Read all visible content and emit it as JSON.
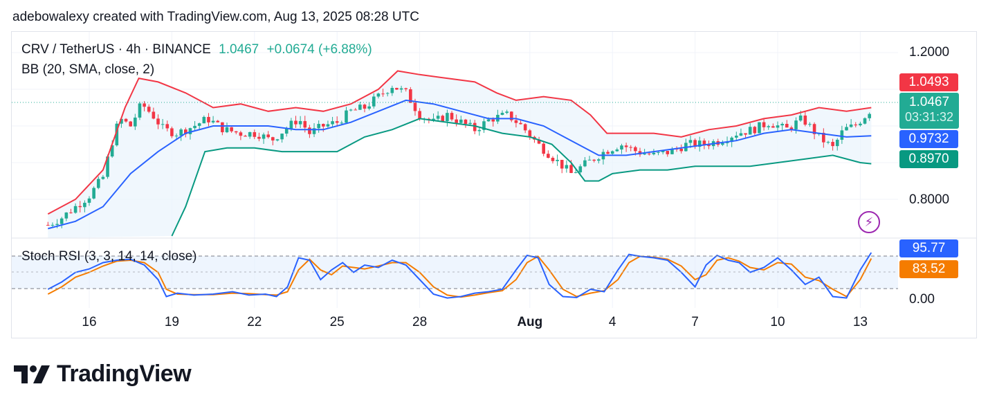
{
  "header": {
    "text": "adebowalexy created with TradingView.com, Aug 13, 2025 08:28 UTC"
  },
  "legend": {
    "symbol": "CRV / TetherUS · 4h · BINANCE",
    "price": "1.0467",
    "change": "+0.0674 (+6.88%)",
    "bb": "BB (20, SMA, close, 2)",
    "stoch": "Stoch RSI (3, 3, 14, 14, close)"
  },
  "price_axis": {
    "labels": [
      "1.2000",
      "0.8000"
    ]
  },
  "stoch_axis": {
    "labels": [
      "0.00"
    ]
  },
  "tags": {
    "bb_upper": "1.0493",
    "last_price": "1.0467",
    "countdown": "03:31:32",
    "bb_basis": "0.9732",
    "bb_lower": "0.8970",
    "stoch_k": "95.77",
    "stoch_d": "83.52"
  },
  "x_axis": {
    "labels": [
      "16",
      "19",
      "22",
      "25",
      "28",
      "Aug",
      "4",
      "7",
      "10",
      "13"
    ]
  },
  "colors": {
    "up": "#22ab94",
    "down": "#f23645",
    "bb_upper": "#f23645",
    "bb_basis": "#2962ff",
    "bb_lower": "#089981",
    "bb_fill": "#eaf3fc",
    "stoch_k": "#2962ff",
    "stoch_d": "#f57c00",
    "stoch_tag_k": "#2962ff",
    "stoch_tag_d": "#f57c00"
  },
  "icons": {
    "flash": "flash-icon",
    "logo": "tradingview-logo"
  },
  "logo": {
    "text": "TradingView"
  },
  "chart_data": {
    "type": "candlestick",
    "interval": "4h",
    "y_range": [
      0.7,
      1.25
    ],
    "x_ticks": [
      {
        "label": "16",
        "day": 16
      },
      {
        "label": "19",
        "day": 19
      },
      {
        "label": "22",
        "day": 22
      },
      {
        "label": "25",
        "day": 25
      },
      {
        "label": "28",
        "day": 28
      },
      {
        "label": "Aug",
        "day": 32
      },
      {
        "label": "4",
        "day": 35
      },
      {
        "label": "7",
        "day": 38
      },
      {
        "label": "10",
        "day": 41
      },
      {
        "label": "13",
        "day": 44
      }
    ],
    "close_path": [
      [
        14.5,
        0.73
      ],
      [
        15.0,
        0.75
      ],
      [
        15.5,
        0.78
      ],
      [
        16.0,
        0.81
      ],
      [
        16.5,
        0.86
      ],
      [
        16.8,
        0.95
      ],
      [
        17.1,
        1.02
      ],
      [
        17.5,
        1.0
      ],
      [
        17.9,
        1.06
      ],
      [
        18.3,
        1.03
      ],
      [
        18.7,
        0.99
      ],
      [
        19.2,
        0.98
      ],
      [
        19.8,
        1.0
      ],
      [
        20.3,
        1.02
      ],
      [
        20.9,
        0.99
      ],
      [
        21.5,
        0.98
      ],
      [
        22.1,
        0.98
      ],
      [
        22.6,
        0.96
      ],
      [
        23.1,
        0.99
      ],
      [
        23.6,
        1.02
      ],
      [
        24.0,
        0.98
      ],
      [
        24.5,
        1.0
      ],
      [
        25.0,
        1.01
      ],
      [
        25.5,
        1.04
      ],
      [
        26.0,
        1.05
      ],
      [
        26.5,
        1.08
      ],
      [
        27.0,
        1.11
      ],
      [
        27.5,
        1.09
      ],
      [
        28.0,
        1.03
      ],
      [
        28.5,
        1.01
      ],
      [
        29.0,
        1.03
      ],
      [
        29.5,
        1.01
      ],
      [
        30.0,
        0.99
      ],
      [
        30.6,
        1.02
      ],
      [
        31.2,
        1.03
      ],
      [
        31.7,
        1.0
      ],
      [
        32.3,
        0.95
      ],
      [
        32.9,
        0.91
      ],
      [
        33.5,
        0.87
      ],
      [
        34.1,
        0.9
      ],
      [
        34.7,
        0.93
      ],
      [
        35.3,
        0.95
      ],
      [
        35.9,
        0.93
      ],
      [
        36.5,
        0.92
      ],
      [
        37.1,
        0.93
      ],
      [
        37.7,
        0.95
      ],
      [
        38.3,
        0.95
      ],
      [
        38.9,
        0.96
      ],
      [
        39.5,
        0.98
      ],
      [
        40.1,
        0.99
      ],
      [
        40.7,
        1.01
      ],
      [
        41.3,
        0.99
      ],
      [
        41.9,
        1.02
      ],
      [
        42.5,
        0.97
      ],
      [
        43.0,
        0.94
      ],
      [
        43.4,
        0.99
      ],
      [
        43.8,
        1.0
      ],
      [
        44.2,
        1.03
      ],
      [
        44.4,
        1.0467
      ]
    ],
    "bb_upper_path": [
      [
        14.5,
        0.76
      ],
      [
        15.5,
        0.8
      ],
      [
        16.5,
        0.88
      ],
      [
        17.3,
        1.05
      ],
      [
        17.8,
        1.13
      ],
      [
        18.5,
        1.12
      ],
      [
        19.5,
        1.09
      ],
      [
        20.5,
        1.05
      ],
      [
        21.5,
        1.06
      ],
      [
        22.5,
        1.04
      ],
      [
        23.5,
        1.05
      ],
      [
        24.5,
        1.04
      ],
      [
        25.5,
        1.06
      ],
      [
        26.5,
        1.1
      ],
      [
        27.2,
        1.15
      ],
      [
        28.0,
        1.14
      ],
      [
        29.0,
        1.13
      ],
      [
        30.0,
        1.12
      ],
      [
        30.8,
        1.09
      ],
      [
        31.5,
        1.07
      ],
      [
        32.5,
        1.08
      ],
      [
        33.5,
        1.07
      ],
      [
        34.2,
        1.03
      ],
      [
        34.8,
        0.98
      ],
      [
        35.5,
        0.98
      ],
      [
        36.5,
        0.98
      ],
      [
        37.5,
        0.97
      ],
      [
        38.5,
        0.99
      ],
      [
        39.5,
        1.0
      ],
      [
        40.5,
        1.02
      ],
      [
        41.5,
        1.03
      ],
      [
        42.5,
        1.05
      ],
      [
        43.5,
        1.04
      ],
      [
        44.4,
        1.05
      ]
    ],
    "bb_basis_path": [
      [
        14.5,
        0.72
      ],
      [
        15.5,
        0.74
      ],
      [
        16.5,
        0.78
      ],
      [
        17.5,
        0.87
      ],
      [
        18.5,
        0.93
      ],
      [
        19.5,
        0.98
      ],
      [
        20.5,
        1.0
      ],
      [
        21.5,
        1.0
      ],
      [
        22.5,
        1.0
      ],
      [
        23.5,
        0.99
      ],
      [
        24.5,
        0.99
      ],
      [
        25.5,
        1.01
      ],
      [
        26.5,
        1.04
      ],
      [
        27.5,
        1.07
      ],
      [
        28.5,
        1.06
      ],
      [
        29.5,
        1.04
      ],
      [
        30.5,
        1.02
      ],
      [
        31.5,
        1.02
      ],
      [
        32.5,
        1.0
      ],
      [
        33.5,
        0.96
      ],
      [
        34.5,
        0.92
      ],
      [
        35.5,
        0.92
      ],
      [
        36.5,
        0.93
      ],
      [
        37.5,
        0.94
      ],
      [
        38.5,
        0.95
      ],
      [
        39.5,
        0.96
      ],
      [
        40.5,
        0.98
      ],
      [
        41.5,
        0.99
      ],
      [
        42.5,
        0.98
      ],
      [
        43.5,
        0.97
      ],
      [
        44.4,
        0.9732
      ]
    ],
    "bb_lower_path": [
      [
        19.0,
        0.7
      ],
      [
        19.5,
        0.78
      ],
      [
        20.2,
        0.93
      ],
      [
        21.0,
        0.94
      ],
      [
        22.0,
        0.94
      ],
      [
        23.0,
        0.93
      ],
      [
        24.0,
        0.93
      ],
      [
        25.0,
        0.93
      ],
      [
        26.0,
        0.97
      ],
      [
        27.0,
        0.99
      ],
      [
        28.0,
        1.02
      ],
      [
        29.0,
        1.01
      ],
      [
        30.0,
        1.0
      ],
      [
        31.0,
        0.98
      ],
      [
        32.0,
        0.97
      ],
      [
        32.8,
        0.95
      ],
      [
        33.5,
        0.9
      ],
      [
        34.0,
        0.85
      ],
      [
        34.5,
        0.85
      ],
      [
        35.0,
        0.87
      ],
      [
        36.0,
        0.88
      ],
      [
        37.0,
        0.88
      ],
      [
        38.0,
        0.89
      ],
      [
        39.0,
        0.89
      ],
      [
        40.0,
        0.89
      ],
      [
        41.0,
        0.9
      ],
      [
        42.0,
        0.91
      ],
      [
        43.0,
        0.92
      ],
      [
        44.0,
        0.9
      ],
      [
        44.4,
        0.897
      ]
    ],
    "stoch_k_path": [
      [
        14.5,
        20
      ],
      [
        15.0,
        35
      ],
      [
        15.5,
        55
      ],
      [
        16.0,
        62
      ],
      [
        16.5,
        75
      ],
      [
        17.0,
        80
      ],
      [
        17.5,
        82
      ],
      [
        18.0,
        70
      ],
      [
        18.5,
        40
      ],
      [
        18.8,
        5
      ],
      [
        19.2,
        12
      ],
      [
        19.8,
        8
      ],
      [
        20.5,
        10
      ],
      [
        21.2,
        15
      ],
      [
        21.8,
        8
      ],
      [
        22.4,
        10
      ],
      [
        22.8,
        5
      ],
      [
        23.2,
        25
      ],
      [
        23.6,
        85
      ],
      [
        24.0,
        80
      ],
      [
        24.4,
        40
      ],
      [
        24.8,
        60
      ],
      [
        25.2,
        75
      ],
      [
        25.6,
        55
      ],
      [
        26.0,
        70
      ],
      [
        26.5,
        65
      ],
      [
        27.0,
        80
      ],
      [
        27.5,
        70
      ],
      [
        28.0,
        40
      ],
      [
        28.5,
        10
      ],
      [
        29.0,
        2
      ],
      [
        29.5,
        5
      ],
      [
        30.0,
        12
      ],
      [
        30.5,
        15
      ],
      [
        31.0,
        20
      ],
      [
        31.5,
        60
      ],
      [
        31.9,
        90
      ],
      [
        32.3,
        85
      ],
      [
        32.7,
        30
      ],
      [
        33.2,
        5
      ],
      [
        33.7,
        3
      ],
      [
        34.2,
        20
      ],
      [
        34.7,
        15
      ],
      [
        35.2,
        60
      ],
      [
        35.6,
        92
      ],
      [
        36.0,
        88
      ],
      [
        36.5,
        85
      ],
      [
        37.0,
        80
      ],
      [
        37.5,
        55
      ],
      [
        38.0,
        25
      ],
      [
        38.4,
        70
      ],
      [
        38.8,
        90
      ],
      [
        39.2,
        80
      ],
      [
        39.6,
        75
      ],
      [
        40.0,
        55
      ],
      [
        40.5,
        65
      ],
      [
        41.0,
        85
      ],
      [
        41.5,
        60
      ],
      [
        42.0,
        30
      ],
      [
        42.5,
        45
      ],
      [
        43.0,
        5
      ],
      [
        43.5,
        2
      ],
      [
        44.0,
        60
      ],
      [
        44.4,
        95.77
      ]
    ],
    "stoch_d_path": [
      [
        14.5,
        10
      ],
      [
        15.0,
        25
      ],
      [
        15.5,
        45
      ],
      [
        16.0,
        55
      ],
      [
        16.5,
        68
      ],
      [
        17.0,
        78
      ],
      [
        17.5,
        80
      ],
      [
        18.0,
        75
      ],
      [
        18.5,
        55
      ],
      [
        18.8,
        20
      ],
      [
        19.2,
        10
      ],
      [
        19.8,
        9
      ],
      [
        20.5,
        9
      ],
      [
        21.2,
        12
      ],
      [
        21.8,
        11
      ],
      [
        22.4,
        9
      ],
      [
        22.8,
        8
      ],
      [
        23.2,
        15
      ],
      [
        23.6,
        60
      ],
      [
        24.0,
        82
      ],
      [
        24.4,
        60
      ],
      [
        24.8,
        50
      ],
      [
        25.2,
        68
      ],
      [
        25.6,
        65
      ],
      [
        26.0,
        62
      ],
      [
        26.5,
        68
      ],
      [
        27.0,
        75
      ],
      [
        27.5,
        75
      ],
      [
        28.0,
        55
      ],
      [
        28.5,
        25
      ],
      [
        29.0,
        8
      ],
      [
        29.5,
        4
      ],
      [
        30.0,
        8
      ],
      [
        30.5,
        13
      ],
      [
        31.0,
        17
      ],
      [
        31.5,
        40
      ],
      [
        31.9,
        75
      ],
      [
        32.3,
        88
      ],
      [
        32.7,
        60
      ],
      [
        33.2,
        20
      ],
      [
        33.7,
        5
      ],
      [
        34.2,
        12
      ],
      [
        34.7,
        17
      ],
      [
        35.2,
        40
      ],
      [
        35.6,
        75
      ],
      [
        36.0,
        88
      ],
      [
        36.5,
        86
      ],
      [
        37.0,
        82
      ],
      [
        37.5,
        68
      ],
      [
        38.0,
        40
      ],
      [
        38.4,
        50
      ],
      [
        38.8,
        80
      ],
      [
        39.2,
        85
      ],
      [
        39.6,
        78
      ],
      [
        40.0,
        65
      ],
      [
        40.5,
        60
      ],
      [
        41.0,
        75
      ],
      [
        41.5,
        72
      ],
      [
        42.0,
        45
      ],
      [
        42.5,
        38
      ],
      [
        43.0,
        20
      ],
      [
        43.5,
        5
      ],
      [
        44.0,
        40
      ],
      [
        44.4,
        83.52
      ]
    ]
  }
}
